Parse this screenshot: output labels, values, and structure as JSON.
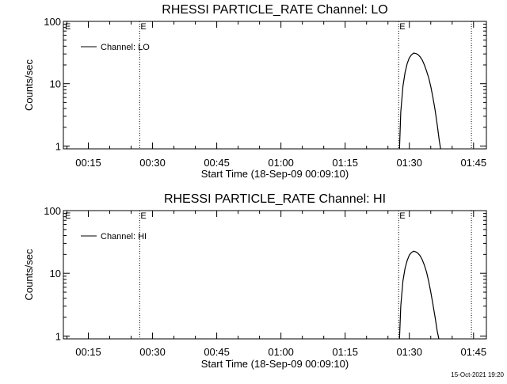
{
  "footer": {
    "date": "15-Oct-2021 19:20"
  },
  "chart_data": [
    {
      "type": "line",
      "title": "RHESSI PARTICLE_RATE Channel: LO",
      "xlabel": "Start Time (18-Sep-09 00:09:10)",
      "ylabel": "Counts/sec",
      "yscale": "log",
      "ylim": [
        0.9,
        100
      ],
      "xlim_minutes": [
        9.17,
        108
      ],
      "x_ticks": [
        {
          "label": "00:15",
          "minute": 15
        },
        {
          "label": "00:30",
          "minute": 30
        },
        {
          "label": "00:45",
          "minute": 45
        },
        {
          "label": "01:00",
          "minute": 60
        },
        {
          "label": "01:15",
          "minute": 75
        },
        {
          "label": "01:30",
          "minute": 90
        },
        {
          "label": "01:45",
          "minute": 105
        }
      ],
      "y_ticks": [
        {
          "label": "1",
          "value": 1
        },
        {
          "label": "10",
          "value": 10
        },
        {
          "label": "100",
          "value": 100
        }
      ],
      "legend": {
        "position": "top-left",
        "entries": [
          "Channel: LO"
        ]
      },
      "vlines": [
        {
          "minute": 27,
          "label": "E"
        },
        {
          "minute": 87.5,
          "label": "E"
        },
        {
          "minute": 104.5,
          "label": ""
        }
      ],
      "series": [
        {
          "name": "Channel: LO",
          "x": [
            87.7,
            88.0,
            88.5,
            89.0,
            89.5,
            90.0,
            90.5,
            91.0,
            91.5,
            92.0,
            92.5,
            93.0,
            93.5,
            94.0,
            94.5,
            95.0,
            95.5,
            96.0,
            96.5,
            97.0,
            97.3
          ],
          "y": [
            0.9,
            3.5,
            9,
            15,
            21,
            26,
            29,
            31,
            30.5,
            29.5,
            27,
            24,
            20,
            16,
            12.5,
            9,
            6,
            3.8,
            2.2,
            1.2,
            0.9
          ]
        }
      ]
    },
    {
      "type": "line",
      "title": "RHESSI PARTICLE_RATE Channel: HI",
      "xlabel": "Start Time (18-Sep-09 00:09:10)",
      "ylabel": "Counts/sec",
      "yscale": "log",
      "ylim": [
        0.9,
        100
      ],
      "xlim_minutes": [
        9.17,
        108
      ],
      "x_ticks": [
        {
          "label": "00:15",
          "minute": 15
        },
        {
          "label": "00:30",
          "minute": 30
        },
        {
          "label": "00:45",
          "minute": 45
        },
        {
          "label": "01:00",
          "minute": 60
        },
        {
          "label": "01:15",
          "minute": 75
        },
        {
          "label": "01:30",
          "minute": 90
        },
        {
          "label": "01:45",
          "minute": 105
        }
      ],
      "y_ticks": [
        {
          "label": "1",
          "value": 1
        },
        {
          "label": "10",
          "value": 10
        },
        {
          "label": "100",
          "value": 100
        }
      ],
      "legend": {
        "position": "top-left",
        "entries": [
          "Channel: HI"
        ]
      },
      "vlines": [
        {
          "minute": 27,
          "label": "E"
        },
        {
          "minute": 87.5,
          "label": "E"
        },
        {
          "minute": 104.5,
          "label": ""
        }
      ],
      "series": [
        {
          "name": "Channel: HI",
          "x": [
            87.7,
            88.0,
            88.5,
            89.0,
            89.5,
            90.0,
            90.5,
            91.0,
            91.5,
            92.0,
            92.5,
            93.0,
            93.5,
            94.0,
            94.5,
            95.0,
            95.5,
            96.0,
            96.5,
            96.9
          ],
          "y": [
            0.9,
            3,
            7.5,
            12,
            16,
            19.5,
            21.5,
            22.5,
            22,
            21,
            19,
            16.5,
            13.5,
            10.5,
            7.5,
            5,
            3.2,
            2,
            1.2,
            0.9
          ]
        }
      ]
    }
  ]
}
